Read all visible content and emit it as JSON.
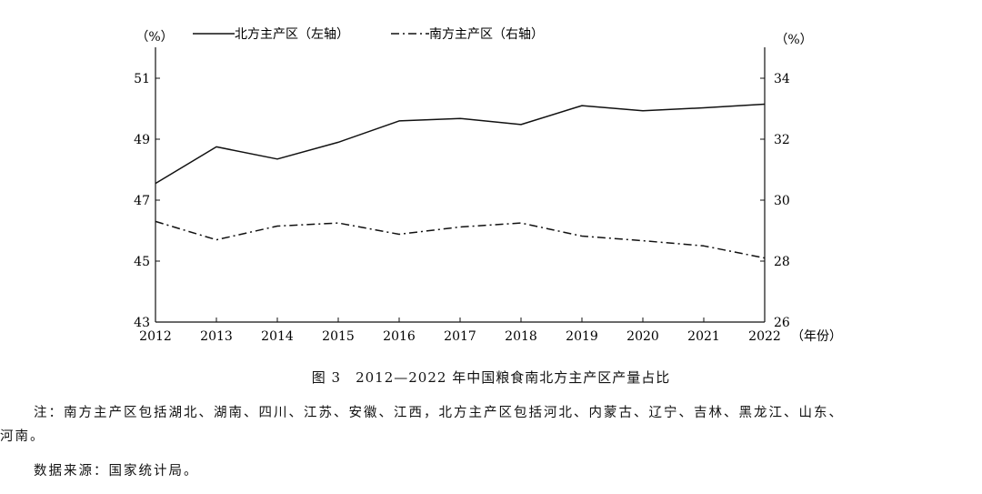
{
  "chart_data": {
    "type": "line",
    "x": [
      "2012",
      "2013",
      "2014",
      "2015",
      "2016",
      "2017",
      "2018",
      "2019",
      "2020",
      "2021",
      "2022"
    ],
    "x_unit": "（年份）",
    "left_unit": "（%）",
    "right_unit": "（%）",
    "left_ylim": [
      43,
      51
    ],
    "left_ticks": [
      "43",
      "45",
      "47",
      "49",
      "51"
    ],
    "right_ylim": [
      26,
      34
    ],
    "right_ticks": [
      "26",
      "28",
      "30",
      "32",
      "34"
    ],
    "series": [
      {
        "name": "北方主产区（左轴）",
        "axis": "left",
        "style": "solid",
        "values": [
          47.55,
          48.75,
          48.35,
          48.9,
          49.6,
          49.68,
          49.48,
          50.1,
          49.93,
          50.03,
          50.15
        ]
      },
      {
        "name": "南方主产区（右轴）",
        "axis": "right",
        "style": "dashdot",
        "values": [
          29.3,
          28.7,
          29.15,
          29.25,
          28.88,
          29.12,
          29.25,
          28.82,
          28.67,
          28.5,
          28.1
        ]
      }
    ],
    "grid": false,
    "legend": "top"
  },
  "caption": "图 3　2012—2022 年中国粮食南北方主产区产量占比",
  "note_line1": "注：南方主产区包括湖北、湖南、四川、江苏、安徽、江西，北方主产区包括河北、内蒙古、辽宁、吉林、黑龙江、山东、",
  "note_line2": "河南。",
  "source": "数据来源：国家统计局。"
}
